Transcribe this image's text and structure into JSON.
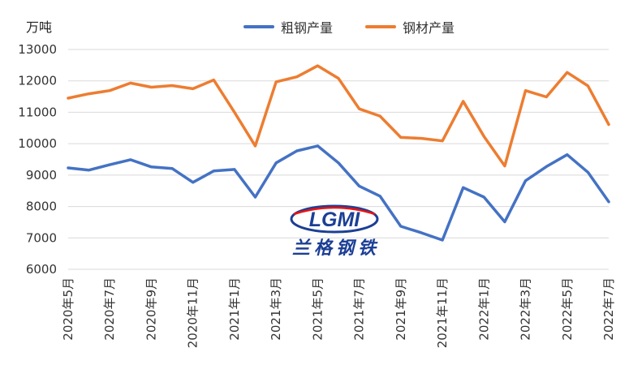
{
  "chart_data": {
    "type": "line",
    "ylabel": "万吨",
    "ylim": [
      6000,
      13000
    ],
    "yticks": [
      6000,
      7000,
      8000,
      9000,
      10000,
      11000,
      12000,
      13000
    ],
    "grid": "horizontal",
    "legend_position": "top",
    "x": [
      "2020年5月",
      "2020年6月",
      "2020年7月",
      "2020年8月",
      "2020年9月",
      "2020年10月",
      "2020年11月",
      "2020年12月",
      "2021年1月",
      "2021年2月",
      "2021年3月",
      "2021年4月",
      "2021年5月",
      "2021年6月",
      "2021年7月",
      "2021年8月",
      "2021年9月",
      "2021年10月",
      "2021年11月",
      "2021年12月",
      "2022年1月",
      "2022年2月",
      "2022年3月",
      "2022年4月",
      "2022年5月",
      "2022年6月",
      "2022年7月"
    ],
    "xtick_labels": [
      "2020年5月",
      "2020年7月",
      "2020年9月",
      "2020年11月",
      "2021年1月",
      "2021年3月",
      "2021年5月",
      "2021年7月",
      "2021年9月",
      "2021年11月",
      "2022年1月",
      "2022年3月",
      "2022年5月",
      "2022年7月"
    ],
    "series": [
      {
        "name": "粗钢产量",
        "color": "#4472c4",
        "values": [
          9230,
          9160,
          9330,
          9490,
          9260,
          9210,
          8770,
          9130,
          9180,
          8300,
          9390,
          9770,
          9930,
          9390,
          8650,
          8330,
          7370,
          7160,
          6930,
          8600,
          8300,
          7510,
          8820,
          9270,
          9650,
          9090,
          8150
        ]
      },
      {
        "name": "钢材产量",
        "color": "#ed7d31",
        "values": [
          11450,
          11590,
          11690,
          11930,
          11800,
          11850,
          11750,
          12030,
          11000,
          9930,
          11970,
          12130,
          12480,
          12080,
          11110,
          10880,
          10200,
          10170,
          10090,
          11350,
          10230,
          9290,
          11690,
          11490,
          12270,
          11840,
          10610
        ]
      }
    ]
  },
  "watermark": {
    "logo_text": "LGMI",
    "cn_text": "兰格钢铁",
    "logo_icon": "lgmi-globe-logo-icon"
  }
}
